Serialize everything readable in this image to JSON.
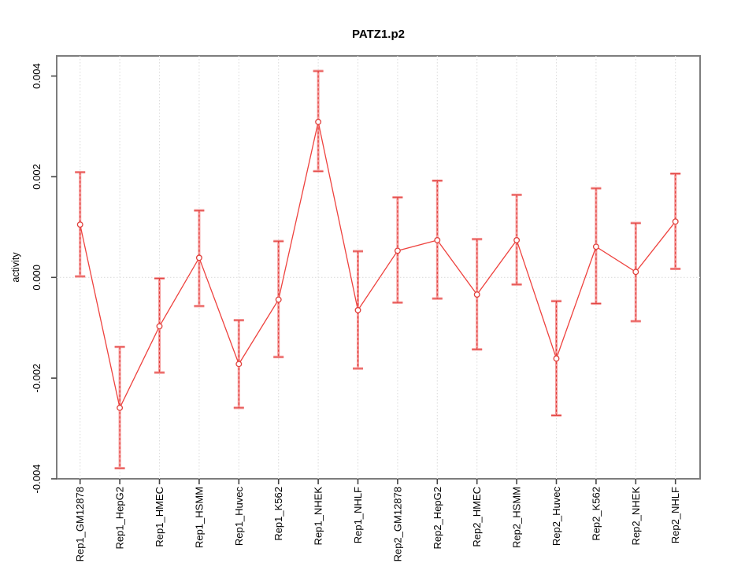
{
  "title": "PATZ1.p2",
  "chart_data": {
    "type": "line",
    "title": "PATZ1.p2",
    "xlabel": "",
    "ylabel": "activity",
    "categories": [
      "Rep1_GM12878",
      "Rep1_HepG2",
      "Rep1_HMEC",
      "Rep1_HSMM",
      "Rep1_Huvec",
      "Rep1_K562",
      "Rep1_NHEK",
      "Rep1_NHLF",
      "Rep2_GM12878",
      "Rep2_HepG2",
      "Rep2_HMEC",
      "Rep2_HSMM",
      "Rep2_Huvec",
      "Rep2_K562",
      "Rep2_NHEK",
      "Rep2_NHLF"
    ],
    "series": [
      {
        "name": "activity",
        "values": [
          0.00105,
          -0.00259,
          -0.00097,
          0.00039,
          -0.00172,
          -0.00044,
          0.00309,
          -0.00065,
          0.00053,
          0.00074,
          -0.00034,
          0.00074,
          -0.00161,
          0.00061,
          0.00011,
          0.00111
        ],
        "upper": [
          0.00209,
          -0.00138,
          -2e-05,
          0.00133,
          -0.00085,
          0.00072,
          0.0041,
          0.00052,
          0.00159,
          0.00192,
          0.00076,
          0.00164,
          -0.00047,
          0.00177,
          0.00108,
          0.00206
        ],
        "lower": [
          2e-05,
          -0.00379,
          -0.00189,
          -0.00057,
          -0.00259,
          -0.00158,
          0.00211,
          -0.00181,
          -0.0005,
          -0.00042,
          -0.00143,
          -0.00014,
          -0.00274,
          -0.00052,
          -0.00087,
          0.00017
        ]
      }
    ],
    "ylim": [
      -0.004,
      0.0044
    ],
    "yticks": [
      -0.004,
      -0.002,
      0,
      0.002,
      0.004
    ],
    "ytick_labels": [
      "-0.004",
      "-0.002",
      "0.000",
      "0.002",
      "0.004"
    ],
    "grid": "vertical dotted line at each category; horizontal dotted line at y=0",
    "legend": "none",
    "marker": "open-circle",
    "colors": {
      "line": "#ee423e",
      "point_stroke": "#e0413d",
      "point_fill": "#ffffff",
      "error_bar": "#f59a9a",
      "error_dash": "#e03c38",
      "grid": "#dddddd",
      "frame": "#7d7d7d",
      "tick": "#444444",
      "text": "#000000",
      "background": "#ffffff"
    }
  }
}
